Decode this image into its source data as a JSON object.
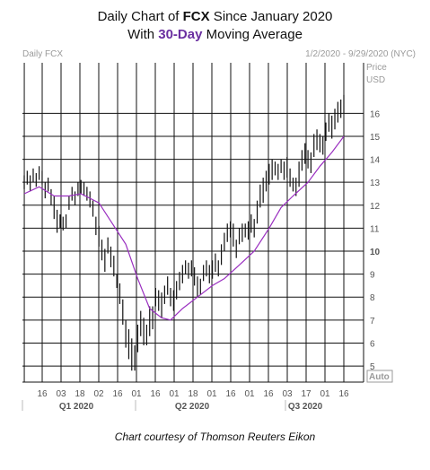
{
  "title": {
    "line1_pre": "Daily Chart of ",
    "line1_ticker": "FCX",
    "line1_post": " Since January 2020",
    "line2_pre": "With ",
    "line2_accent": "30-Day",
    "line2_post": " Moving Average"
  },
  "caption": "Chart courtesy of Thomson Reuters Eikon",
  "colors": {
    "bars": "#111111",
    "moving_average": "#9a2fc0",
    "grid": "#111111",
    "accent": "#6a2fa0"
  },
  "chart_data": {
    "type": "ohlc",
    "symbol_label": "Daily FCX",
    "date_range_label": "1/2/2020 - 9/29/2020 (NYC)",
    "y_axis_label": [
      "Price",
      "USD"
    ],
    "auto_label": "Auto",
    "ylim": [
      4.3,
      18.2
    ],
    "y_ticks": [
      5,
      6,
      7,
      8,
      9,
      10,
      11,
      12,
      13,
      14,
      15,
      16
    ],
    "y_tick_bold": [
      10
    ],
    "x_ticks": [
      "16",
      "03",
      "18",
      "02",
      "16",
      "01",
      "16",
      "01",
      "18",
      "01",
      "16",
      "01",
      "16",
      "03",
      "17",
      "01",
      "16"
    ],
    "quarters": [
      "Q1 2020",
      "Q2 2020",
      "Q3 2020"
    ],
    "grid": true,
    "series": [
      {
        "name": "FCX",
        "kind": "ohlc_bars",
        "values": [
          [
            12.7,
            13.3
          ],
          [
            12.9,
            13.5
          ],
          [
            12.6,
            13.3
          ],
          [
            13.0,
            13.6
          ],
          [
            12.8,
            13.4
          ],
          [
            13.1,
            13.7
          ],
          [
            12.9,
            13.5
          ],
          [
            12.3,
            13.0
          ],
          [
            12.6,
            13.2
          ],
          [
            12.0,
            12.7
          ],
          [
            11.4,
            12.4
          ],
          [
            10.8,
            11.8
          ],
          [
            11.0,
            11.6
          ],
          [
            10.9,
            11.5
          ],
          [
            11.0,
            11.6
          ],
          [
            11.8,
            12.4
          ],
          [
            12.2,
            12.8
          ],
          [
            12.0,
            12.6
          ],
          [
            12.4,
            13.0
          ],
          [
            12.5,
            13.1
          ],
          [
            12.4,
            13.0
          ],
          [
            12.2,
            12.8
          ],
          [
            11.9,
            12.6
          ],
          [
            11.5,
            12.2
          ],
          [
            10.7,
            11.5
          ],
          [
            10.2,
            11.1
          ],
          [
            9.6,
            10.5
          ],
          [
            9.1,
            10.1
          ],
          [
            9.9,
            10.6
          ],
          [
            9.3,
            10.2
          ],
          [
            8.9,
            9.8
          ],
          [
            8.4,
            9.0
          ],
          [
            7.7,
            8.6
          ],
          [
            6.8,
            7.9
          ],
          [
            5.8,
            7.0
          ],
          [
            5.3,
            6.6
          ],
          [
            4.8,
            6.2
          ],
          [
            4.8,
            5.9
          ],
          [
            5.6,
            6.8
          ],
          [
            6.3,
            7.4
          ],
          [
            5.9,
            7.1
          ],
          [
            5.9,
            6.8
          ],
          [
            6.3,
            7.6
          ],
          [
            6.6,
            7.6
          ],
          [
            7.6,
            8.4
          ],
          [
            7.4,
            8.3
          ],
          [
            7.1,
            8.2
          ],
          [
            7.7,
            8.5
          ],
          [
            8.1,
            8.9
          ],
          [
            7.6,
            8.4
          ],
          [
            7.4,
            8.3
          ],
          [
            7.9,
            8.7
          ],
          [
            8.3,
            9.1
          ],
          [
            8.6,
            9.4
          ],
          [
            9.0,
            9.6
          ],
          [
            8.8,
            9.5
          ],
          [
            8.9,
            9.6
          ],
          [
            8.5,
            9.3
          ],
          [
            8.0,
            8.9
          ],
          [
            8.1,
            8.8
          ],
          [
            8.7,
            9.4
          ],
          [
            8.9,
            9.6
          ],
          [
            8.6,
            9.4
          ],
          [
            8.8,
            9.6
          ],
          [
            9.1,
            9.9
          ],
          [
            8.9,
            9.6
          ],
          [
            9.4,
            10.3
          ],
          [
            10.0,
            10.8
          ],
          [
            10.4,
            11.2
          ],
          [
            10.6,
            11.3
          ],
          [
            10.2,
            11.2
          ],
          [
            9.7,
            10.5
          ],
          [
            10.3,
            11.0
          ],
          [
            10.4,
            11.2
          ],
          [
            10.6,
            11.2
          ],
          [
            10.5,
            11.3
          ],
          [
            10.8,
            11.6
          ],
          [
            10.6,
            11.4
          ],
          [
            11.2,
            12.2
          ],
          [
            11.9,
            12.9
          ],
          [
            12.1,
            13.2
          ],
          [
            12.6,
            13.5
          ],
          [
            12.9,
            13.8
          ],
          [
            13.1,
            14.0
          ],
          [
            13.3,
            13.9
          ],
          [
            13.1,
            13.8
          ],
          [
            13.4,
            14.0
          ],
          [
            13.1,
            13.9
          ],
          [
            13.2,
            14.1
          ],
          [
            12.8,
            13.6
          ],
          [
            12.6,
            13.2
          ],
          [
            12.4,
            13.2
          ],
          [
            12.8,
            13.9
          ],
          [
            13.5,
            14.4
          ],
          [
            13.8,
            14.7
          ],
          [
            13.6,
            14.4
          ],
          [
            13.4,
            14.3
          ],
          [
            14.1,
            15.1
          ],
          [
            14.4,
            15.3
          ],
          [
            14.3,
            15.1
          ],
          [
            14.2,
            15.0
          ],
          [
            14.8,
            15.6
          ],
          [
            15.2,
            16.0
          ],
          [
            14.9,
            15.9
          ],
          [
            15.3,
            16.2
          ],
          [
            15.6,
            16.5
          ],
          [
            15.8,
            16.6
          ],
          [
            16.0,
            16.8
          ]
        ]
      },
      {
        "name": "30-Day",
        "kind": "line",
        "values": [
          [
            0,
            12.5
          ],
          [
            5,
            12.8
          ],
          [
            10,
            12.4
          ],
          [
            15,
            12.4
          ],
          [
            19,
            12.5
          ],
          [
            25,
            12.1
          ],
          [
            29,
            11.3
          ],
          [
            34,
            10.3
          ],
          [
            38,
            8.8
          ],
          [
            42,
            7.5
          ],
          [
            46,
            7.1
          ],
          [
            49,
            7.0
          ],
          [
            53,
            7.5
          ],
          [
            58,
            8.0
          ],
          [
            63,
            8.5
          ],
          [
            67,
            8.8
          ],
          [
            72,
            9.4
          ],
          [
            77,
            10.0
          ],
          [
            82,
            11.0
          ],
          [
            86,
            11.9
          ],
          [
            90,
            12.4
          ],
          [
            95,
            13.0
          ],
          [
            99,
            13.7
          ],
          [
            103,
            14.3
          ],
          [
            107,
            15.0
          ]
        ]
      }
    ]
  }
}
